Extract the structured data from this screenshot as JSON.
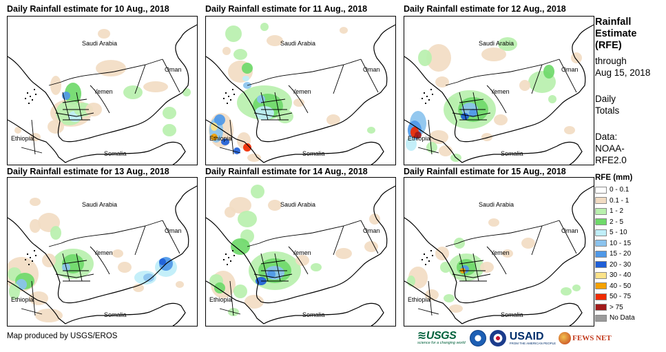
{
  "panels": [
    {
      "title": "Daily Rainfall estimate for 10 Aug., 2018",
      "rain": "d10"
    },
    {
      "title": "Daily Rainfall estimate for 11 Aug., 2018",
      "rain": "d11"
    },
    {
      "title": "Daily Rainfall estimate for 12 Aug., 2018",
      "rain": "d12"
    },
    {
      "title": "Daily Rainfall estimate for 13 Aug., 2018",
      "rain": "d13"
    },
    {
      "title": "Daily Rainfall estimate for 14 Aug., 2018",
      "rain": "d14"
    },
    {
      "title": "Daily Rainfall estimate for 15 Aug., 2018",
      "rain": "d15"
    }
  ],
  "map_labels": {
    "saudi": "Saudi Arabia",
    "oman": "Oman",
    "yemen": "Yemen",
    "ethiopia": "Ethiopia",
    "somalia": "Somalia"
  },
  "sidebar": {
    "title_line1": "Rainfall",
    "title_line2": "Estimate",
    "title_line3": "(RFE)",
    "through_line1": "through",
    "through_line2": "Aug 15, 2018",
    "daily_line1": "Daily",
    "daily_line2": "Totals",
    "data_line1": "Data:",
    "data_line2": "NOAA-",
    "data_line3": "RFE2.0"
  },
  "legend": {
    "title": "RFE (mm)",
    "items": [
      {
        "label": "0 - 0.1",
        "color": "#ffffff"
      },
      {
        "label": "0.1 - 1",
        "color": "#f2dcc3"
      },
      {
        "label": "1 - 2",
        "color": "#b9f0ae"
      },
      {
        "label": "2 - 5",
        "color": "#6fd96a"
      },
      {
        "label": "5 - 10",
        "color": "#bfeef8"
      },
      {
        "label": "10 - 15",
        "color": "#8bc3ee"
      },
      {
        "label": "15 - 20",
        "color": "#4f98e7"
      },
      {
        "label": "20 - 30",
        "color": "#1f5fd8"
      },
      {
        "label": "30 - 40",
        "color": "#fbe38a"
      },
      {
        "label": "40 - 50",
        "color": "#f5a100"
      },
      {
        "label": "50 - 75",
        "color": "#f02a00"
      },
      {
        "label": "> 75",
        "color": "#a11a1a"
      },
      {
        "label": "No Data",
        "color": "#9a9a9a"
      }
    ]
  },
  "credit": "Map produced by USGS/EROS",
  "logos": {
    "usgs": "USGS",
    "usgs_tag": "science for a changing world",
    "usaid": "USAID",
    "usaid_tag": "FROM THE AMERICAN PEOPLE",
    "fews": "FEWS NET"
  }
}
